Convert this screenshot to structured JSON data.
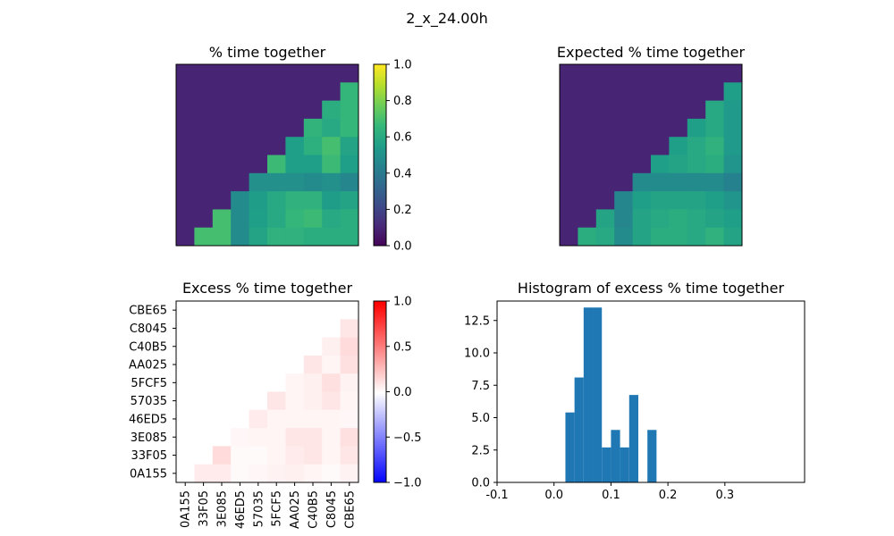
{
  "figure": {
    "suptitle": "2_x_24.00h"
  },
  "labels": [
    "0A155",
    "33F05",
    "3E085",
    "46ED5",
    "57035",
    "5FCF5",
    "AA025",
    "C40B5",
    "C8045",
    "CBE65"
  ],
  "colors": {
    "hist_bar": "#1f77b4"
  },
  "chart_data": [
    {
      "type": "heatmap",
      "title": "% time together",
      "colormap": "viridis",
      "vmin": 0,
      "vmax": 1,
      "colorbar_ticks": [
        "0.0",
        "0.2",
        "0.4",
        "0.6",
        "0.8",
        "1.0"
      ],
      "matrix": [
        [
          0.1,
          0.1,
          0.1,
          0.1,
          0.1,
          0.1,
          0.1,
          0.1,
          0.1,
          0.1
        ],
        [
          0.1,
          0.1,
          0.1,
          0.1,
          0.1,
          0.1,
          0.1,
          0.1,
          0.1,
          0.66
        ],
        [
          0.1,
          0.1,
          0.1,
          0.1,
          0.1,
          0.1,
          0.1,
          0.1,
          0.62,
          0.66
        ],
        [
          0.1,
          0.1,
          0.1,
          0.1,
          0.1,
          0.1,
          0.1,
          0.65,
          0.6,
          0.66
        ],
        [
          0.1,
          0.1,
          0.1,
          0.1,
          0.1,
          0.1,
          0.56,
          0.63,
          0.7,
          0.58
        ],
        [
          0.1,
          0.1,
          0.1,
          0.1,
          0.1,
          0.68,
          0.56,
          0.56,
          0.68,
          0.56
        ],
        [
          0.1,
          0.1,
          0.1,
          0.1,
          0.5,
          0.5,
          0.5,
          0.48,
          0.5,
          0.46
        ],
        [
          0.1,
          0.1,
          0.1,
          0.48,
          0.55,
          0.6,
          0.64,
          0.64,
          0.55,
          0.58
        ],
        [
          0.1,
          0.1,
          0.7,
          0.48,
          0.56,
          0.6,
          0.66,
          0.68,
          0.6,
          0.62
        ],
        [
          0.1,
          0.7,
          0.7,
          0.48,
          0.58,
          0.64,
          0.64,
          0.62,
          0.62,
          0.62
        ]
      ]
    },
    {
      "type": "heatmap",
      "title": "Expected % time together",
      "colormap": "viridis",
      "vmin": 0,
      "vmax": 1,
      "matrix": [
        [
          0.1,
          0.1,
          0.1,
          0.1,
          0.1,
          0.1,
          0.1,
          0.1,
          0.1,
          0.1
        ],
        [
          0.1,
          0.1,
          0.1,
          0.1,
          0.1,
          0.1,
          0.1,
          0.1,
          0.1,
          0.56
        ],
        [
          0.1,
          0.1,
          0.1,
          0.1,
          0.1,
          0.1,
          0.1,
          0.1,
          0.6,
          0.54
        ],
        [
          0.1,
          0.1,
          0.1,
          0.1,
          0.1,
          0.1,
          0.1,
          0.56,
          0.6,
          0.54
        ],
        [
          0.1,
          0.1,
          0.1,
          0.1,
          0.1,
          0.1,
          0.56,
          0.6,
          0.64,
          0.54
        ],
        [
          0.1,
          0.1,
          0.1,
          0.1,
          0.1,
          0.56,
          0.58,
          0.6,
          0.62,
          0.52
        ],
        [
          0.1,
          0.1,
          0.1,
          0.1,
          0.48,
          0.48,
          0.48,
          0.48,
          0.48,
          0.44
        ],
        [
          0.1,
          0.1,
          0.1,
          0.46,
          0.56,
          0.58,
          0.58,
          0.58,
          0.56,
          0.52
        ],
        [
          0.1,
          0.1,
          0.58,
          0.46,
          0.58,
          0.6,
          0.62,
          0.6,
          0.58,
          0.56
        ],
        [
          0.1,
          0.62,
          0.6,
          0.48,
          0.58,
          0.62,
          0.62,
          0.6,
          0.64,
          0.58
        ]
      ]
    },
    {
      "type": "heatmap",
      "title": "Excess % time together",
      "colormap": "bwr",
      "vmin": -1,
      "vmax": 1,
      "colorbar_ticks": [
        "−1.0",
        "−0.5",
        "0.0",
        "0.5",
        "1.0"
      ],
      "row_labels_top_to_bottom": [
        "CBE65",
        "C8045",
        "C40B5",
        "AA025",
        "5FCF5",
        "57035",
        "46ED5",
        "3E085",
        "33F05",
        "0A155"
      ],
      "col_labels": [
        "0A155",
        "33F05",
        "3E085",
        "46ED5",
        "57035",
        "5FCF5",
        "AA025",
        "C40B5",
        "C8045",
        "CBE65"
      ],
      "matrix": [
        [
          0,
          0,
          0,
          0,
          0,
          0,
          0,
          0,
          0,
          0
        ],
        [
          0,
          0,
          0,
          0,
          0,
          0,
          0,
          0,
          0,
          0.1
        ],
        [
          0,
          0,
          0,
          0,
          0,
          0,
          0,
          0,
          0.06,
          0.14
        ],
        [
          0,
          0,
          0,
          0,
          0,
          0,
          0,
          0.1,
          0.04,
          0.12
        ],
        [
          0,
          0,
          0,
          0,
          0,
          0,
          0.04,
          0.06,
          0.12,
          0.05
        ],
        [
          0,
          0,
          0,
          0,
          0,
          0.1,
          0.04,
          0.06,
          0.1,
          0.04
        ],
        [
          0,
          0,
          0,
          0,
          0.08,
          0.04,
          0.04,
          0.04,
          0.04,
          0.03
        ],
        [
          0,
          0,
          0,
          0.03,
          0.04,
          0.04,
          0.1,
          0.1,
          0.04,
          0.12
        ],
        [
          0,
          0,
          0.14,
          0.02,
          0.02,
          0.04,
          0.08,
          0.1,
          0.04,
          0.1
        ],
        [
          0,
          0.08,
          0.08,
          0.02,
          0.03,
          0.05,
          0.06,
          0.04,
          0.02,
          0.05
        ]
      ]
    },
    {
      "type": "bar",
      "title": "Histogram of excess % time together",
      "xlim": [
        -0.1,
        0.44
      ],
      "ylim": [
        0,
        14
      ],
      "xticks": [
        -0.1,
        0.0,
        0.1,
        0.2,
        0.3
      ],
      "yticks": [
        0.0,
        2.5,
        5.0,
        7.5,
        10.0,
        12.5
      ],
      "bins": [
        {
          "x0": 0.02,
          "x1": 0.036,
          "count": 5.4
        },
        {
          "x0": 0.036,
          "x1": 0.052,
          "count": 8.1
        },
        {
          "x0": 0.052,
          "x1": 0.068,
          "count": 13.5
        },
        {
          "x0": 0.068,
          "x1": 0.084,
          "count": 13.5
        },
        {
          "x0": 0.084,
          "x1": 0.1,
          "count": 2.7
        },
        {
          "x0": 0.1,
          "x1": 0.116,
          "count": 4.05
        },
        {
          "x0": 0.116,
          "x1": 0.132,
          "count": 2.7
        },
        {
          "x0": 0.132,
          "x1": 0.148,
          "count": 6.75
        },
        {
          "x0": 0.148,
          "x1": 0.164,
          "count": 0
        },
        {
          "x0": 0.164,
          "x1": 0.18,
          "count": 4.05
        }
      ]
    }
  ]
}
